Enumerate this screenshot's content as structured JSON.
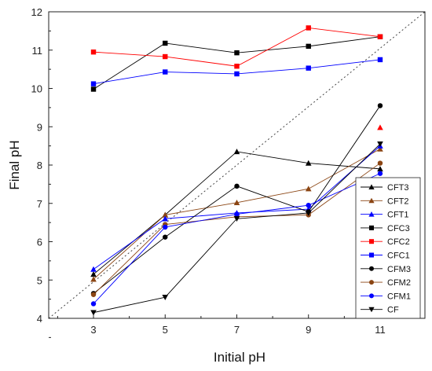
{
  "chart_data": {
    "type": "line",
    "xlabel": "Initial pH",
    "ylabel": "Final pH",
    "x": [
      3,
      5,
      7,
      9,
      11
    ],
    "xlim": [
      1.75,
      12.25
    ],
    "ylim": [
      4,
      12
    ],
    "xticks": [
      3,
      5,
      7,
      9,
      11
    ],
    "yticks": [
      4,
      5,
      6,
      7,
      8,
      9,
      10,
      11,
      12
    ],
    "grid": false,
    "legend_position": "bottom-right",
    "reference_line": {
      "style": "dotted",
      "from": [
        1.75,
        4
      ],
      "to": [
        12.25,
        12
      ]
    },
    "series": [
      {
        "name": "CFT3",
        "marker": "triangle-up",
        "color": "#000000",
        "values": [
          5.15,
          6.7,
          8.35,
          8.05,
          7.9
        ]
      },
      {
        "name": "CFT2",
        "marker": "triangle-up",
        "color": "#8B4513",
        "values": [
          5.02,
          6.7,
          7.02,
          7.38,
          8.42
        ]
      },
      {
        "name": "CFT1",
        "marker": "triangle-up",
        "color": "#0000ff",
        "values": [
          5.28,
          6.6,
          6.75,
          6.85,
          8.5
        ]
      },
      {
        "name": "CFC3",
        "marker": "square",
        "color": "#000000",
        "values": [
          9.98,
          11.18,
          10.93,
          11.1,
          11.35
        ]
      },
      {
        "name": "CFC2",
        "marker": "square",
        "color": "#ff0000",
        "values": [
          10.95,
          10.83,
          10.58,
          11.58,
          11.35
        ]
      },
      {
        "name": "CFC1",
        "marker": "square",
        "color": "#0000ff",
        "values": [
          10.12,
          10.43,
          10.38,
          10.53,
          10.75
        ]
      },
      {
        "name": "CFM3",
        "marker": "circle",
        "color": "#000000",
        "values": [
          4.65,
          6.12,
          7.45,
          6.78,
          9.55
        ]
      },
      {
        "name": "CFM2",
        "marker": "circle",
        "color": "#8B4513",
        "values": [
          4.62,
          6.45,
          6.65,
          6.7,
          8.05
        ]
      },
      {
        "name": "CFM1",
        "marker": "circle",
        "color": "#0000ff",
        "values": [
          4.38,
          6.38,
          6.72,
          6.95,
          7.78
        ]
      },
      {
        "name": "CF",
        "marker": "triangle-down",
        "color": "#000000",
        "values": [
          4.15,
          4.55,
          6.6,
          6.75,
          8.55
        ]
      }
    ],
    "extra_series": [
      {
        "marker": "triangle-up",
        "color": "#ff0000",
        "values": [
          null,
          null,
          null,
          null,
          8.98
        ]
      }
    ]
  }
}
